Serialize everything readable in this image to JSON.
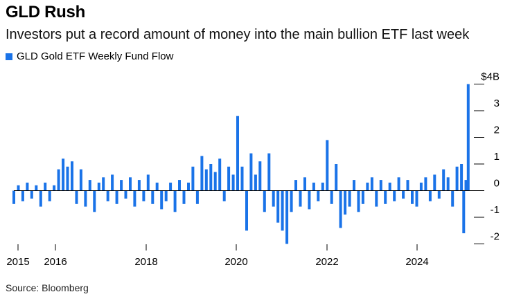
{
  "header": {
    "title": "GLD Rush",
    "subtitle": "Investors put a record amount of money into the main bullion ETF last week"
  },
  "footer": {
    "source": "Source: Bloomberg"
  },
  "colors": {
    "series": "#1a73e8",
    "axis": "#000000"
  },
  "chart_data": {
    "type": "bar",
    "title": "GLD Rush",
    "subtitle": "Investors put a record amount of money into the main bullion ETF last week",
    "xlabel": "",
    "ylabel": "",
    "x_range": [
      2015.0,
      2025.2
    ],
    "ylim": [
      -2.2,
      4.0
    ],
    "y_ticks": [
      {
        "value": 4,
        "label": "$4B"
      },
      {
        "value": 3,
        "label": "3"
      },
      {
        "value": 2,
        "label": "2"
      },
      {
        "value": 1,
        "label": "1"
      },
      {
        "value": 0,
        "label": "0"
      },
      {
        "value": -1,
        "label": "-1"
      },
      {
        "value": -2,
        "label": "-2"
      }
    ],
    "x_ticks": [
      {
        "value": 2015,
        "label": "2015"
      },
      {
        "value": 2016,
        "label": "2016"
      },
      {
        "value": 2018,
        "label": "2018"
      },
      {
        "value": 2020,
        "label": "2020"
      },
      {
        "value": 2022,
        "label": "2022"
      },
      {
        "value": 2024,
        "label": "2024"
      }
    ],
    "grid": false,
    "legend_position": "top-left",
    "series": [
      {
        "name": "GLD Gold ETF Weekly Fund Flow",
        "x": [
          2015.0,
          2015.1,
          2015.2,
          2015.3,
          2015.4,
          2015.5,
          2015.6,
          2015.7,
          2015.8,
          2015.9,
          2016.0,
          2016.1,
          2016.2,
          2016.3,
          2016.4,
          2016.5,
          2016.6,
          2016.7,
          2016.8,
          2016.9,
          2017.0,
          2017.1,
          2017.2,
          2017.3,
          2017.4,
          2017.5,
          2017.6,
          2017.7,
          2017.8,
          2017.9,
          2018.0,
          2018.1,
          2018.2,
          2018.3,
          2018.4,
          2018.5,
          2018.6,
          2018.7,
          2018.8,
          2018.9,
          2019.0,
          2019.1,
          2019.2,
          2019.3,
          2019.4,
          2019.5,
          2019.6,
          2019.7,
          2019.8,
          2019.9,
          2020.0,
          2020.1,
          2020.2,
          2020.3,
          2020.4,
          2020.5,
          2020.6,
          2020.7,
          2020.8,
          2020.9,
          2021.0,
          2021.1,
          2021.2,
          2021.3,
          2021.4,
          2021.5,
          2021.6,
          2021.7,
          2021.8,
          2021.9,
          2022.0,
          2022.1,
          2022.2,
          2022.3,
          2022.4,
          2022.5,
          2022.6,
          2022.7,
          2022.8,
          2022.9,
          2023.0,
          2023.1,
          2023.2,
          2023.3,
          2023.4,
          2023.5,
          2023.6,
          2023.7,
          2023.8,
          2023.9,
          2024.0,
          2024.1,
          2024.2,
          2024.3,
          2024.4,
          2024.5,
          2024.6,
          2024.7,
          2024.8,
          2024.9,
          2025.0,
          2025.05,
          2025.1,
          2025.15
        ],
        "values": [
          -0.5,
          0.2,
          -0.4,
          0.3,
          -0.3,
          0.2,
          -0.6,
          0.3,
          -0.4,
          0.2,
          0.8,
          1.2,
          0.9,
          1.1,
          -0.5,
          0.8,
          -0.6,
          0.4,
          -0.8,
          0.3,
          0.5,
          -0.4,
          0.6,
          -0.5,
          0.4,
          -0.3,
          0.5,
          -0.6,
          0.4,
          -0.4,
          0.6,
          -0.5,
          0.3,
          -0.7,
          -0.4,
          0.3,
          -0.8,
          0.4,
          -0.5,
          0.3,
          0.9,
          -0.5,
          1.3,
          0.8,
          1.0,
          0.7,
          1.2,
          -0.4,
          0.9,
          0.6,
          2.8,
          0.9,
          -1.5,
          1.4,
          0.6,
          1.1,
          -0.8,
          1.4,
          -0.6,
          -1.2,
          -1.5,
          -2.0,
          -0.8,
          0.4,
          -0.6,
          0.5,
          -0.7,
          0.3,
          -0.4,
          0.3,
          1.9,
          -0.5,
          1.0,
          -1.4,
          -0.9,
          -0.6,
          0.4,
          -0.8,
          -0.5,
          0.3,
          0.5,
          -0.6,
          0.4,
          -0.5,
          0.3,
          -0.4,
          0.5,
          -0.3,
          0.4,
          -0.5,
          -0.6,
          0.3,
          0.5,
          -0.4,
          0.6,
          -0.3,
          0.8,
          0.5,
          -0.6,
          0.9,
          1.0,
          -1.6,
          0.4,
          4.0
        ]
      }
    ]
  }
}
